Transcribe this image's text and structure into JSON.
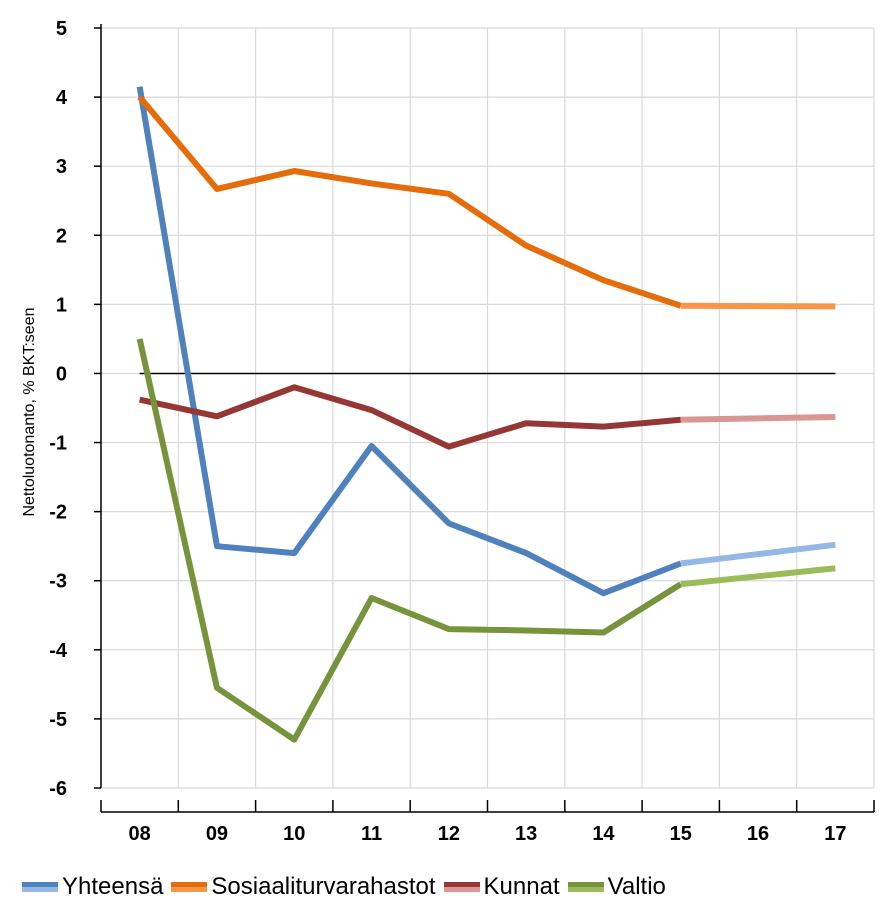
{
  "chart_data": {
    "type": "line",
    "title": "",
    "xlabel": "",
    "ylabel": "Nettoluotonanto, % BKT:seen",
    "categories": [
      "08",
      "09",
      "10",
      "11",
      "12",
      "13",
      "14",
      "15",
      "16",
      "17"
    ],
    "ylim": [
      -6,
      5
    ],
    "yticks": [
      "5",
      "4",
      "3",
      "2",
      "1",
      "0",
      "-1",
      "-2",
      "-3",
      "-4",
      "-5",
      "-6"
    ],
    "grid": true,
    "legend_position": "bottom",
    "zero_line": true,
    "series": [
      {
        "name": "Yhteensä",
        "color": "#4f81bd",
        "forecast_color": "#95b7e3",
        "x": [
          "08",
          "09",
          "10",
          "11",
          "12",
          "13",
          "14",
          "15",
          "17"
        ],
        "values": [
          4.15,
          -2.5,
          -2.6,
          -1.05,
          -2.17,
          -2.6,
          -3.18,
          -2.75,
          -2.48
        ],
        "forecast_from": "15"
      },
      {
        "name": "Sosiaaliturvarahastot",
        "color": "#e46c0a",
        "forecast_color": "#f79646",
        "x": [
          "08",
          "09",
          "10",
          "11",
          "12",
          "13",
          "14",
          "15",
          "17"
        ],
        "values": [
          4.0,
          2.67,
          2.93,
          2.75,
          2.6,
          1.85,
          1.35,
          0.98,
          0.97
        ],
        "forecast_from": "15"
      },
      {
        "name": "Kunnat",
        "color": "#953735",
        "forecast_color": "#d99694",
        "x": [
          "08",
          "09",
          "10",
          "11",
          "12",
          "13",
          "14",
          "15",
          "17"
        ],
        "values": [
          -0.38,
          -0.62,
          -0.2,
          -0.53,
          -1.06,
          -0.72,
          -0.77,
          -0.67,
          -0.63
        ],
        "forecast_from": "15"
      },
      {
        "name": "Valtio",
        "color": "#77933c",
        "forecast_color": "#9bbb59",
        "x": [
          "08",
          "09",
          "10",
          "11",
          "12",
          "13",
          "14",
          "15",
          "17"
        ],
        "values": [
          0.5,
          -4.55,
          -5.3,
          -3.25,
          -3.7,
          -3.72,
          -3.75,
          -3.05,
          -2.82
        ],
        "forecast_from": "15"
      }
    ]
  }
}
